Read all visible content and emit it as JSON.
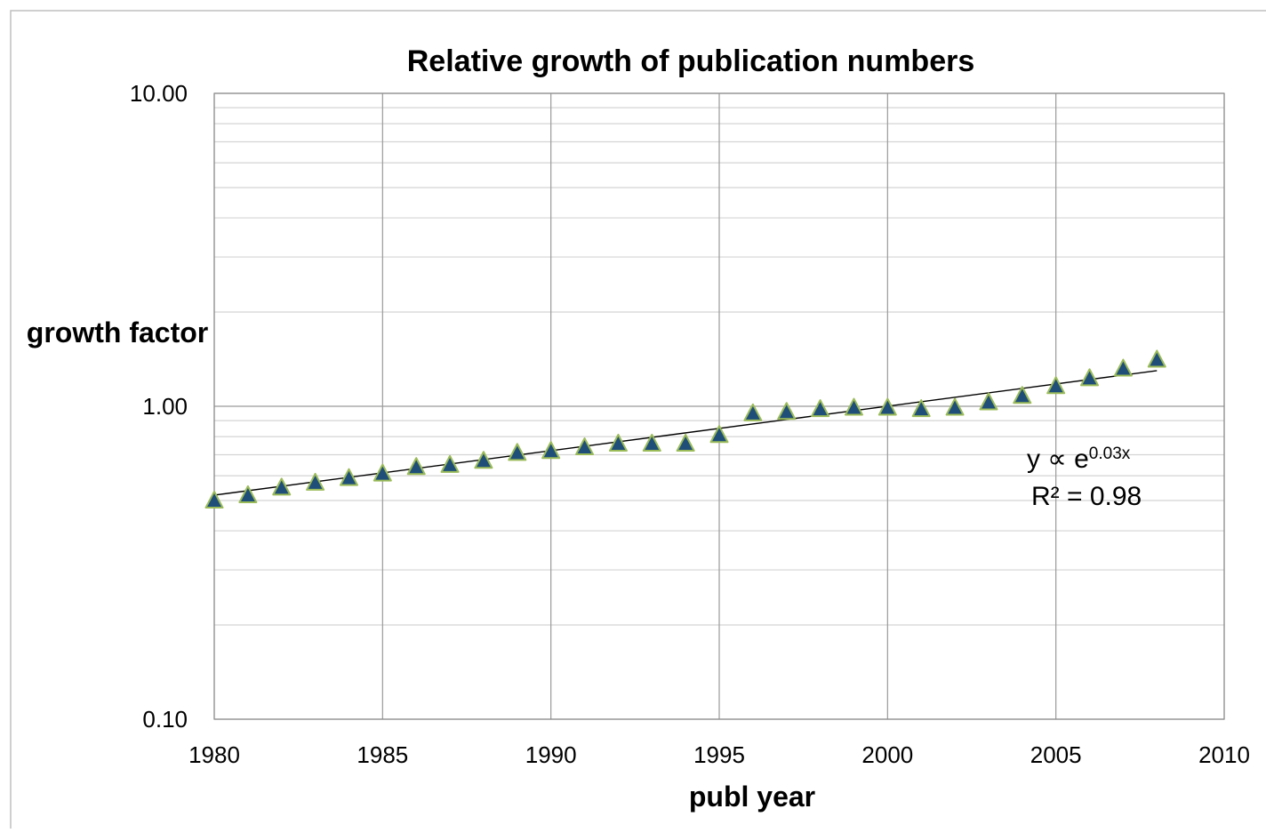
{
  "chart_data": {
    "type": "scatter",
    "title": "Relative growth of publication numbers",
    "xlabel": "publ year",
    "ylabel": "growth factor",
    "y_scale": "log",
    "xlim": [
      1980,
      2010
    ],
    "ylim": [
      0.1,
      10
    ],
    "x_ticks": [
      "1980",
      "1985",
      "1990",
      "1995",
      "2000",
      "2005",
      "2010"
    ],
    "y_ticks": [
      "0.10",
      "1.00",
      "10.00"
    ],
    "grid": true,
    "marker": "triangle",
    "marker_fill": "#1f4e79",
    "marker_edge": "#9bbb59",
    "series": [
      {
        "x": [
          1980,
          1981,
          1982,
          1983,
          1984,
          1985,
          1986,
          1987,
          1988,
          1989,
          1990,
          1991,
          1992,
          1993,
          1994,
          1995,
          1996,
          1997,
          1998,
          1999,
          2000,
          2001,
          2002,
          2003,
          2004,
          2005,
          2006,
          2007,
          2008
        ],
        "y": [
          0.5,
          0.52,
          0.55,
          0.57,
          0.59,
          0.61,
          0.64,
          0.65,
          0.67,
          0.71,
          0.72,
          0.74,
          0.76,
          0.76,
          0.76,
          0.81,
          0.95,
          0.96,
          0.98,
          0.99,
          0.99,
          0.98,
          0.99,
          1.03,
          1.08,
          1.16,
          1.23,
          1.32,
          1.41
        ]
      }
    ],
    "trendline": {
      "type": "exponential",
      "x": [
        1980,
        2008
      ],
      "y": [
        0.52,
        1.3
      ]
    },
    "annotations": {
      "equation_prefix": "y  ∝ e",
      "equation_exponent": "0.03x",
      "r_squared": "R² = 0.98"
    }
  }
}
